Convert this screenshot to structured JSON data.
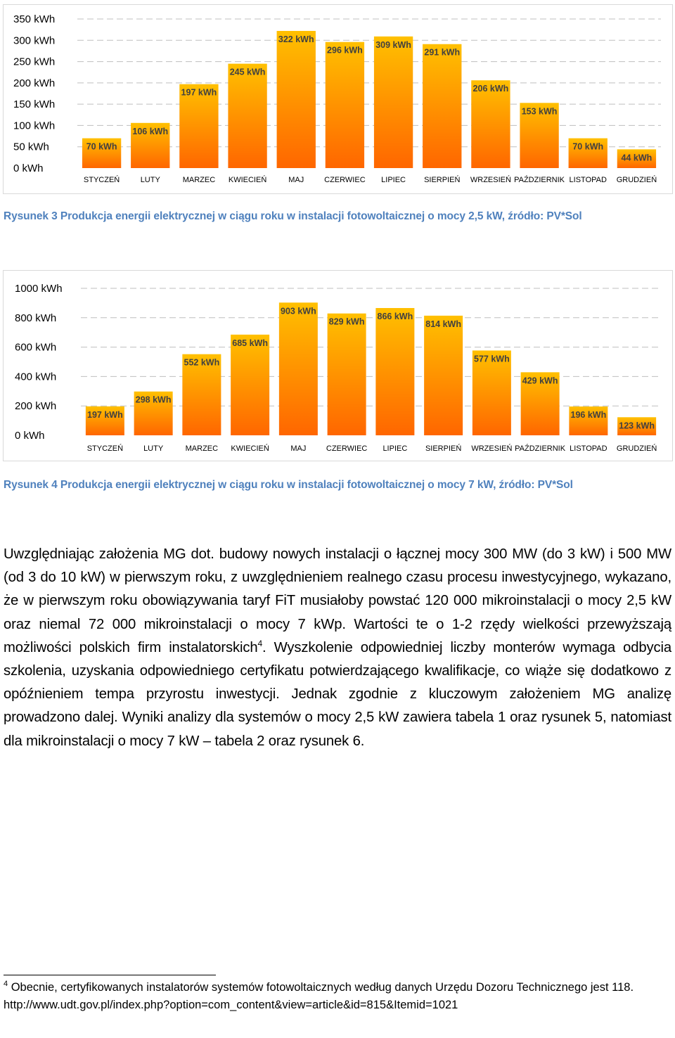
{
  "chart_data": [
    {
      "type": "bar",
      "unit": "kWh",
      "categories": [
        "STYCZEŃ",
        "LUTY",
        "MARZEC",
        "KWIECIEŃ",
        "MAJ",
        "CZERWIEC",
        "LIPIEC",
        "SIERPIEŃ",
        "WRZESIEŃ",
        "PAŹDZIERNIK",
        "LISTOPAD",
        "GRUDZIEŃ"
      ],
      "values": [
        70,
        106,
        197,
        245,
        322,
        296,
        309,
        291,
        206,
        153,
        70,
        44
      ],
      "data_labels": [
        "70 kWh",
        "106 kWh",
        "197 kWh",
        "245 kWh",
        "322 kWh",
        "296 kWh",
        "309 kWh",
        "291 kWh",
        "206 kWh",
        "153 kWh",
        "70 kWh",
        "44 kWh"
      ],
      "ylim": [
        0,
        350
      ],
      "yticks": [
        "0 kWh",
        "50 kWh",
        "100 kWh",
        "150 kWh",
        "200 kWh",
        "250 kWh",
        "300 kWh",
        "350 kWh"
      ],
      "ytick_values": [
        0,
        50,
        100,
        150,
        200,
        250,
        300,
        350
      ],
      "gridlines": true,
      "gridline_style": "dashed",
      "bar_color_top": "#ffc000",
      "bar_color_bottom": "#ff6600",
      "title": "",
      "xlabel": "",
      "ylabel": ""
    },
    {
      "type": "bar",
      "unit": "kWh",
      "categories": [
        "STYCZEŃ",
        "LUTY",
        "MARZEC",
        "KWIECIEŃ",
        "MAJ",
        "CZERWIEC",
        "LIPIEC",
        "SIERPIEŃ",
        "WRZESIEŃ",
        "PAŹDZIERNIK",
        "LISTOPAD",
        "GRUDZIEŃ"
      ],
      "values": [
        197,
        298,
        552,
        685,
        903,
        829,
        866,
        814,
        577,
        429,
        196,
        123
      ],
      "data_labels": [
        "197 kWh",
        "298 kWh",
        "552 kWh",
        "685 kWh",
        "903 kWh",
        "829 kWh",
        "866 kWh",
        "814 kWh",
        "577 kWh",
        "429 kWh",
        "196 kWh",
        "123 kWh"
      ],
      "ylim": [
        0,
        1000
      ],
      "yticks": [
        "0 kWh",
        "200 kWh",
        "400 kWh",
        "600 kWh",
        "800 kWh",
        "1000 kWh"
      ],
      "ytick_values": [
        0,
        200,
        400,
        600,
        800,
        1000
      ],
      "gridlines": true,
      "gridline_style": "dashed",
      "bar_color_top": "#ffc000",
      "bar_color_bottom": "#ff6600",
      "title": "",
      "xlabel": "",
      "ylabel": ""
    }
  ],
  "captions": {
    "figure3": "Rysunek 3 Produkcja energii elektrycznej w ciągu roku w instalacji fotowoltaicznej o mocy 2,5 kW, źródło: PV*Sol",
    "figure4": "Rysunek 4 Produkcja energii elektrycznej w ciągu roku w instalacji fotowoltaicznej o mocy 7 kW, źródło: PV*Sol"
  },
  "caption_color": "#4f81bd",
  "body": {
    "part1": "Uwzględniając założenia MG dot. budowy nowych instalacji o łącznej mocy 300 MW (do 3 kW) i 500 MW (od 3 do 10 kW) w pierwszym roku, z uwzględnieniem realnego czasu procesu inwestycyjnego, wykazano, że w pierwszym roku obowiązywania taryf FiT musiałoby powstać 120 000 mikroinstalacji o mocy 2,5 kW oraz niemal 72 000 mikroinstalacji o mocy 7 kWp. Wartości te o 1-2 rzędy wielkości przewyższają możliwości polskich firm instalatorskich",
    "footnote_ref": "4",
    "part2": ". Wyszkolenie odpowiedniej liczby monterów wymaga odbycia szkolenia, uzyskania odpowiedniego certyfikatu potwierdzającego kwalifikacje, co wiąże się dodatkowo z opóźnieniem tempa przyrostu inwestycji. Jednak zgodnie z kluczowym założeniem MG analizę prowadzono dalej. Wyniki analizy dla systemów o mocy 2,5 kW zawiera tabela 1 oraz rysunek 5, natomiast dla mikroinstalacji o mocy 7 kW – tabela 2 oraz rysunek 6."
  },
  "footnote": {
    "number": "4",
    "text": " Obecnie, certyfikowanych instalatorów systemów fotowoltaicznych według danych Urzędu Dozoru Technicznego jest 118.",
    "url": "http://www.udt.gov.pl/index.php?option=com_content&view=article&id=815&Itemid=1021"
  }
}
